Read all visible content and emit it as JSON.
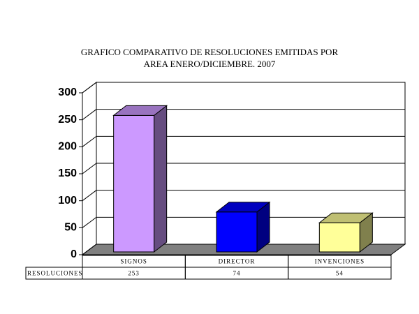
{
  "chart_data": {
    "type": "bar3d",
    "title": [
      "GRAFICO COMPARATIVO DE RESOLUCIONES EMITIDAS POR",
      "AREA ENERO/DICIEMBRE. 2007"
    ],
    "categories": [
      "SIGNOS",
      "DIRECTOR",
      "INVENCIONES"
    ],
    "series": [
      {
        "name": "RESOLUCIONES",
        "values": [
          253,
          74,
          54
        ],
        "colors": [
          "#cc99ff",
          "#0000ff",
          "#ffff99"
        ]
      }
    ],
    "ylim": [
      0,
      300
    ],
    "yticks": [
      0,
      50,
      100,
      150,
      200,
      250,
      300
    ],
    "grid": true,
    "data_table": true
  }
}
